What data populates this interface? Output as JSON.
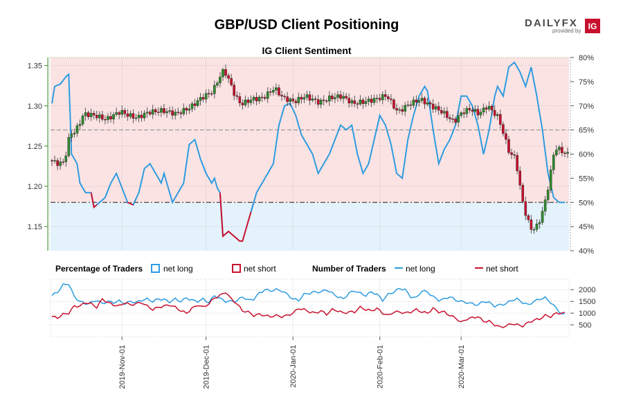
{
  "title": "GBP/USD Client Positioning",
  "subtitle": "IG Client Sentiment",
  "brand": {
    "name": "DAILYFX",
    "provided_by": "provided by",
    "ig": "IG"
  },
  "colors": {
    "long": "#2d9be0",
    "short": "#c8102e",
    "short_zone": "#fbe3e3",
    "long_zone": "#e4f2fb",
    "up_candle": "#2e8b2e",
    "down_candle": "#c8102e",
    "price_axis": "#3a8a2a"
  },
  "legend": {
    "percentage_header": "Percentage of Traders",
    "number_header": "Number of Traders",
    "net_long": "net long",
    "net_short": "net short"
  },
  "chart_data": {
    "type": "line",
    "x_labels": [
      "2019-Nov-01",
      "2019-Dec-01",
      "2020-Jan-01",
      "2020-Feb-01",
      "2020-Mar-01"
    ],
    "x_label_index": [
      25,
      55,
      86,
      117,
      146
    ],
    "n_days": 180,
    "price_axis": {
      "ticks": [
        "1.35",
        "1.30",
        "1.25",
        "1.20",
        "1.15"
      ],
      "values": [
        1.35,
        1.3,
        1.25,
        1.2,
        1.15
      ],
      "range": [
        1.12,
        1.36
      ]
    },
    "percent_axis": {
      "ticks": [
        "80%",
        "75%",
        "70%",
        "65%",
        "60%",
        "55%",
        "50%",
        "45%",
        "40%"
      ],
      "values": [
        80,
        75,
        70,
        65,
        60,
        55,
        50,
        45,
        40
      ],
      "range": [
        40,
        80
      ]
    },
    "count_axis": {
      "ticks": [
        "2000",
        "1500",
        "1000",
        "500"
      ],
      "values": [
        2000,
        1500,
        1000,
        500
      ],
      "range": [
        0,
        2450
      ]
    },
    "reference_lines": {
      "pct_50": 50,
      "pct_65": 65
    },
    "price_anchors": [
      [
        0,
        1.232
      ],
      [
        3,
        1.228
      ],
      [
        5,
        1.23
      ],
      [
        7,
        1.265
      ],
      [
        9,
        1.268
      ],
      [
        12,
        1.29
      ],
      [
        16,
        1.288
      ],
      [
        20,
        1.283
      ],
      [
        25,
        1.293
      ],
      [
        28,
        1.288
      ],
      [
        31,
        1.285
      ],
      [
        35,
        1.292
      ],
      [
        40,
        1.294
      ],
      [
        45,
        1.29
      ],
      [
        50,
        1.298
      ],
      [
        54,
        1.31
      ],
      [
        58,
        1.318
      ],
      [
        60,
        1.333
      ],
      [
        62,
        1.345
      ],
      [
        64,
        1.33
      ],
      [
        66,
        1.312
      ],
      [
        68,
        1.302
      ],
      [
        72,
        1.308
      ],
      [
        76,
        1.31
      ],
      [
        80,
        1.322
      ],
      [
        83,
        1.31
      ],
      [
        87,
        1.305
      ],
      [
        91,
        1.312
      ],
      [
        96,
        1.304
      ],
      [
        100,
        1.31
      ],
      [
        104,
        1.312
      ],
      [
        108,
        1.303
      ],
      [
        112,
        1.305
      ],
      [
        116,
        1.308
      ],
      [
        120,
        1.313
      ],
      [
        124,
        1.292
      ],
      [
        128,
        1.302
      ],
      [
        132,
        1.308
      ],
      [
        136,
        1.3
      ],
      [
        140,
        1.292
      ],
      [
        144,
        1.28
      ],
      [
        147,
        1.292
      ],
      [
        150,
        1.296
      ],
      [
        153,
        1.29
      ],
      [
        156,
        1.3
      ],
      [
        160,
        1.285
      ],
      [
        162,
        1.262
      ],
      [
        164,
        1.24
      ],
      [
        166,
        1.236
      ],
      [
        168,
        1.19
      ],
      [
        170,
        1.16
      ],
      [
        172,
        1.145
      ],
      [
        174,
        1.152
      ],
      [
        176,
        1.172
      ],
      [
        178,
        1.205
      ],
      [
        180,
        1.248
      ],
      [
        182,
        1.245
      ],
      [
        184,
        1.24
      ]
    ],
    "pct_long_anchors": [
      [
        0,
        70.5
      ],
      [
        1,
        74
      ],
      [
        3,
        74.5
      ],
      [
        5,
        76
      ],
      [
        6,
        76.5
      ],
      [
        7,
        60
      ],
      [
        9,
        58
      ],
      [
        10,
        54
      ],
      [
        12,
        52
      ],
      [
        14,
        52
      ],
      [
        15,
        49
      ],
      [
        17,
        50
      ],
      [
        19,
        51
      ],
      [
        21,
        54
      ],
      [
        23,
        56
      ],
      [
        25,
        53
      ],
      [
        27,
        50
      ],
      [
        29,
        49.5
      ],
      [
        31,
        52
      ],
      [
        33,
        57
      ],
      [
        35,
        58
      ],
      [
        37,
        56
      ],
      [
        39,
        54
      ],
      [
        40,
        56
      ],
      [
        42,
        52
      ],
      [
        43,
        50
      ],
      [
        45,
        52
      ],
      [
        47,
        54
      ],
      [
        49,
        62
      ],
      [
        51,
        63
      ],
      [
        53,
        59
      ],
      [
        55,
        56
      ],
      [
        57,
        54
      ],
      [
        58,
        55
      ],
      [
        59,
        53
      ],
      [
        60,
        52
      ],
      [
        61,
        43
      ],
      [
        63,
        44
      ],
      [
        65,
        43
      ],
      [
        67,
        42
      ],
      [
        68,
        42
      ],
      [
        69,
        44
      ],
      [
        71,
        48
      ],
      [
        73,
        52
      ],
      [
        75,
        54
      ],
      [
        77,
        56
      ],
      [
        79,
        58
      ],
      [
        81,
        66
      ],
      [
        83,
        70
      ],
      [
        85,
        70.5
      ],
      [
        87,
        68
      ],
      [
        89,
        64
      ],
      [
        91,
        62
      ],
      [
        93,
        60
      ],
      [
        95,
        56
      ],
      [
        97,
        58
      ],
      [
        99,
        60
      ],
      [
        101,
        63
      ],
      [
        103,
        66
      ],
      [
        105,
        65
      ],
      [
        107,
        66
      ],
      [
        109,
        60
      ],
      [
        110,
        58
      ],
      [
        111,
        56
      ],
      [
        113,
        58
      ],
      [
        115,
        63
      ],
      [
        117,
        68
      ],
      [
        119,
        66
      ],
      [
        121,
        62
      ],
      [
        123,
        56
      ],
      [
        125,
        55
      ],
      [
        127,
        63
      ],
      [
        129,
        68
      ],
      [
        131,
        72
      ],
      [
        133,
        74
      ],
      [
        134,
        73
      ],
      [
        136,
        65
      ],
      [
        138,
        58
      ],
      [
        140,
        61
      ],
      [
        142,
        63
      ],
      [
        144,
        66
      ],
      [
        146,
        72
      ],
      [
        148,
        72
      ],
      [
        150,
        70
      ],
      [
        152,
        66
      ],
      [
        154,
        60
      ],
      [
        156,
        65
      ],
      [
        158,
        72
      ],
      [
        159,
        74
      ],
      [
        161,
        72
      ],
      [
        163,
        78
      ],
      [
        165,
        79
      ],
      [
        167,
        77
      ],
      [
        169,
        74
      ],
      [
        171,
        78
      ],
      [
        173,
        72
      ],
      [
        175,
        65
      ],
      [
        177,
        56
      ],
      [
        179,
        51
      ],
      [
        181,
        50
      ],
      [
        183,
        50
      ]
    ],
    "count_long_anchors": [
      [
        0,
        1750
      ],
      [
        2,
        1900
      ],
      [
        4,
        2200
      ],
      [
        6,
        2250
      ],
      [
        8,
        1700
      ],
      [
        10,
        1500
      ],
      [
        12,
        1400
      ],
      [
        14,
        1450
      ],
      [
        16,
        1550
      ],
      [
        18,
        1400
      ],
      [
        20,
        1500
      ],
      [
        22,
        1450
      ],
      [
        24,
        1520
      ],
      [
        26,
        1400
      ],
      [
        28,
        1500
      ],
      [
        30,
        1450
      ],
      [
        32,
        1550
      ],
      [
        34,
        1600
      ],
      [
        36,
        1500
      ],
      [
        38,
        1600
      ],
      [
        40,
        1580
      ],
      [
        42,
        1480
      ],
      [
        44,
        1600
      ],
      [
        46,
        1500
      ],
      [
        48,
        1650
      ],
      [
        50,
        1550
      ],
      [
        52,
        1500
      ],
      [
        54,
        1600
      ],
      [
        56,
        1450
      ],
      [
        58,
        1750
      ],
      [
        60,
        1620
      ],
      [
        62,
        1500
      ],
      [
        64,
        1500
      ],
      [
        66,
        1520
      ],
      [
        68,
        1700
      ],
      [
        70,
        1550
      ],
      [
        72,
        1600
      ],
      [
        74,
        1850
      ],
      [
        76,
        2000
      ],
      [
        78,
        1950
      ],
      [
        80,
        2000
      ],
      [
        82,
        1950
      ],
      [
        84,
        1800
      ],
      [
        86,
        1600
      ],
      [
        88,
        1550
      ],
      [
        90,
        1800
      ],
      [
        92,
        1850
      ],
      [
        94,
        1900
      ],
      [
        96,
        1900
      ],
      [
        98,
        2000
      ],
      [
        100,
        1850
      ],
      [
        102,
        1700
      ],
      [
        104,
        1600
      ],
      [
        106,
        1850
      ],
      [
        108,
        1950
      ],
      [
        110,
        1850
      ],
      [
        112,
        1750
      ],
      [
        114,
        1900
      ],
      [
        116,
        1800
      ],
      [
        118,
        1550
      ],
      [
        120,
        1800
      ],
      [
        122,
        1900
      ],
      [
        124,
        2050
      ],
      [
        126,
        2000
      ],
      [
        128,
        1700
      ],
      [
        130,
        1650
      ],
      [
        132,
        1950
      ],
      [
        134,
        1900
      ],
      [
        136,
        1700
      ],
      [
        138,
        1550
      ],
      [
        140,
        1600
      ],
      [
        142,
        1700
      ],
      [
        144,
        1550
      ],
      [
        146,
        1500
      ],
      [
        148,
        1450
      ],
      [
        150,
        1400
      ],
      [
        152,
        1350
      ],
      [
        154,
        1500
      ],
      [
        156,
        1450
      ],
      [
        158,
        1300
      ],
      [
        160,
        1350
      ],
      [
        162,
        1400
      ],
      [
        164,
        1550
      ],
      [
        166,
        1600
      ],
      [
        168,
        1450
      ],
      [
        170,
        1350
      ],
      [
        172,
        1500
      ],
      [
        174,
        1600
      ],
      [
        176,
        1650
      ],
      [
        178,
        1450
      ],
      [
        180,
        1200
      ],
      [
        182,
        950
      ],
      [
        184,
        950
      ]
    ],
    "count_short_anchors": [
      [
        0,
        850
      ],
      [
        2,
        800
      ],
      [
        4,
        950
      ],
      [
        6,
        1000
      ],
      [
        8,
        1300
      ],
      [
        10,
        1300
      ],
      [
        12,
        1450
      ],
      [
        14,
        1400
      ],
      [
        16,
        1250
      ],
      [
        18,
        1600
      ],
      [
        20,
        1450
      ],
      [
        22,
        1350
      ],
      [
        24,
        1300
      ],
      [
        26,
        1450
      ],
      [
        28,
        1350
      ],
      [
        30,
        1400
      ],
      [
        32,
        1450
      ],
      [
        34,
        1300
      ],
      [
        36,
        1150
      ],
      [
        38,
        1250
      ],
      [
        40,
        1300
      ],
      [
        42,
        1350
      ],
      [
        44,
        1250
      ],
      [
        46,
        1100
      ],
      [
        48,
        1000
      ],
      [
        50,
        1200
      ],
      [
        52,
        1350
      ],
      [
        54,
        1250
      ],
      [
        56,
        1400
      ],
      [
        58,
        1650
      ],
      [
        60,
        1750
      ],
      [
        62,
        1900
      ],
      [
        64,
        1600
      ],
      [
        66,
        1400
      ],
      [
        68,
        1100
      ],
      [
        70,
        1050
      ],
      [
        72,
        900
      ],
      [
        74,
        950
      ],
      [
        76,
        900
      ],
      [
        78,
        850
      ],
      [
        80,
        900
      ],
      [
        82,
        850
      ],
      [
        84,
        900
      ],
      [
        86,
        1000
      ],
      [
        88,
        1200
      ],
      [
        90,
        1150
      ],
      [
        92,
        1050
      ],
      [
        94,
        1000
      ],
      [
        96,
        1100
      ],
      [
        98,
        950
      ],
      [
        100,
        1150
      ],
      [
        102,
        1100
      ],
      [
        104,
        1000
      ],
      [
        106,
        1050
      ],
      [
        108,
        1050
      ],
      [
        110,
        1250
      ],
      [
        112,
        1150
      ],
      [
        114,
        1100
      ],
      [
        116,
        1200
      ],
      [
        118,
        1000
      ],
      [
        120,
        900
      ],
      [
        122,
        1050
      ],
      [
        124,
        1050
      ],
      [
        126,
        1000
      ],
      [
        128,
        1050
      ],
      [
        130,
        1150
      ],
      [
        132,
        1050
      ],
      [
        134,
        1000
      ],
      [
        136,
        1200
      ],
      [
        138,
        1050
      ],
      [
        140,
        1050
      ],
      [
        142,
        900
      ],
      [
        144,
        800
      ],
      [
        146,
        600
      ],
      [
        148,
        750
      ],
      [
        150,
        800
      ],
      [
        152,
        850
      ],
      [
        154,
        650
      ],
      [
        156,
        650
      ],
      [
        158,
        500
      ],
      [
        160,
        400
      ],
      [
        162,
        450
      ],
      [
        164,
        550
      ],
      [
        166,
        500
      ],
      [
        168,
        450
      ],
      [
        170,
        600
      ],
      [
        172,
        700
      ],
      [
        174,
        750
      ],
      [
        176,
        900
      ],
      [
        178,
        850
      ],
      [
        180,
        1000
      ],
      [
        182,
        1000
      ],
      [
        184,
        1000
      ]
    ]
  }
}
